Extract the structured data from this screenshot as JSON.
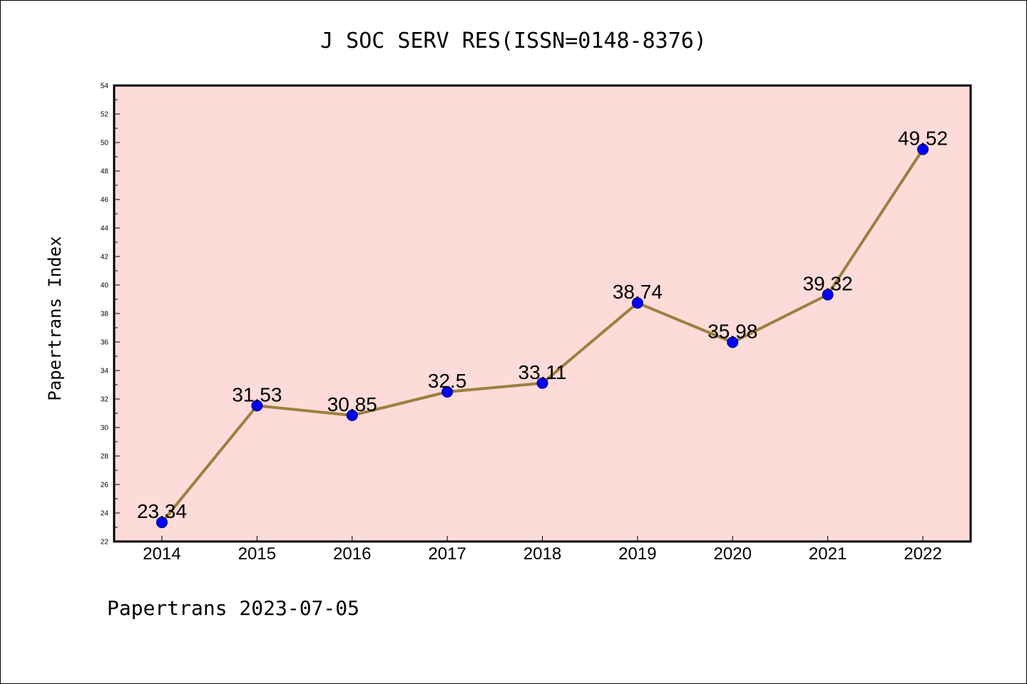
{
  "chart_data": {
    "type": "line",
    "title": "J SOC SERV RES(ISSN=0148-8376)",
    "xlabel": "",
    "ylabel": "Papertrans Index",
    "categories": [
      "2014",
      "2015",
      "2016",
      "2017",
      "2018",
      "2019",
      "2020",
      "2021",
      "2022"
    ],
    "series": [
      {
        "values": [
          23.34,
          31.53,
          30.85,
          32.5,
          33.11,
          38.74,
          35.98,
          39.32,
          49.52
        ],
        "labels": [
          "23.34",
          "31.53",
          "30.85",
          "32.5",
          "33.11",
          "38.74",
          "35.98",
          "39.32",
          "49.52"
        ]
      }
    ],
    "ylim": [
      22,
      54
    ],
    "yticks": [
      "22",
      "24",
      "26",
      "28",
      "30",
      "32",
      "34",
      "36",
      "38",
      "40",
      "42",
      "44",
      "46",
      "48",
      "50",
      "52",
      "54"
    ],
    "grid": false,
    "colors": {
      "plot_background": "#fddbd9",
      "line": "#9b803e",
      "marker": "#0000ff",
      "axis": "#000000"
    }
  },
  "footer": "Papertrans 2023-07-05"
}
